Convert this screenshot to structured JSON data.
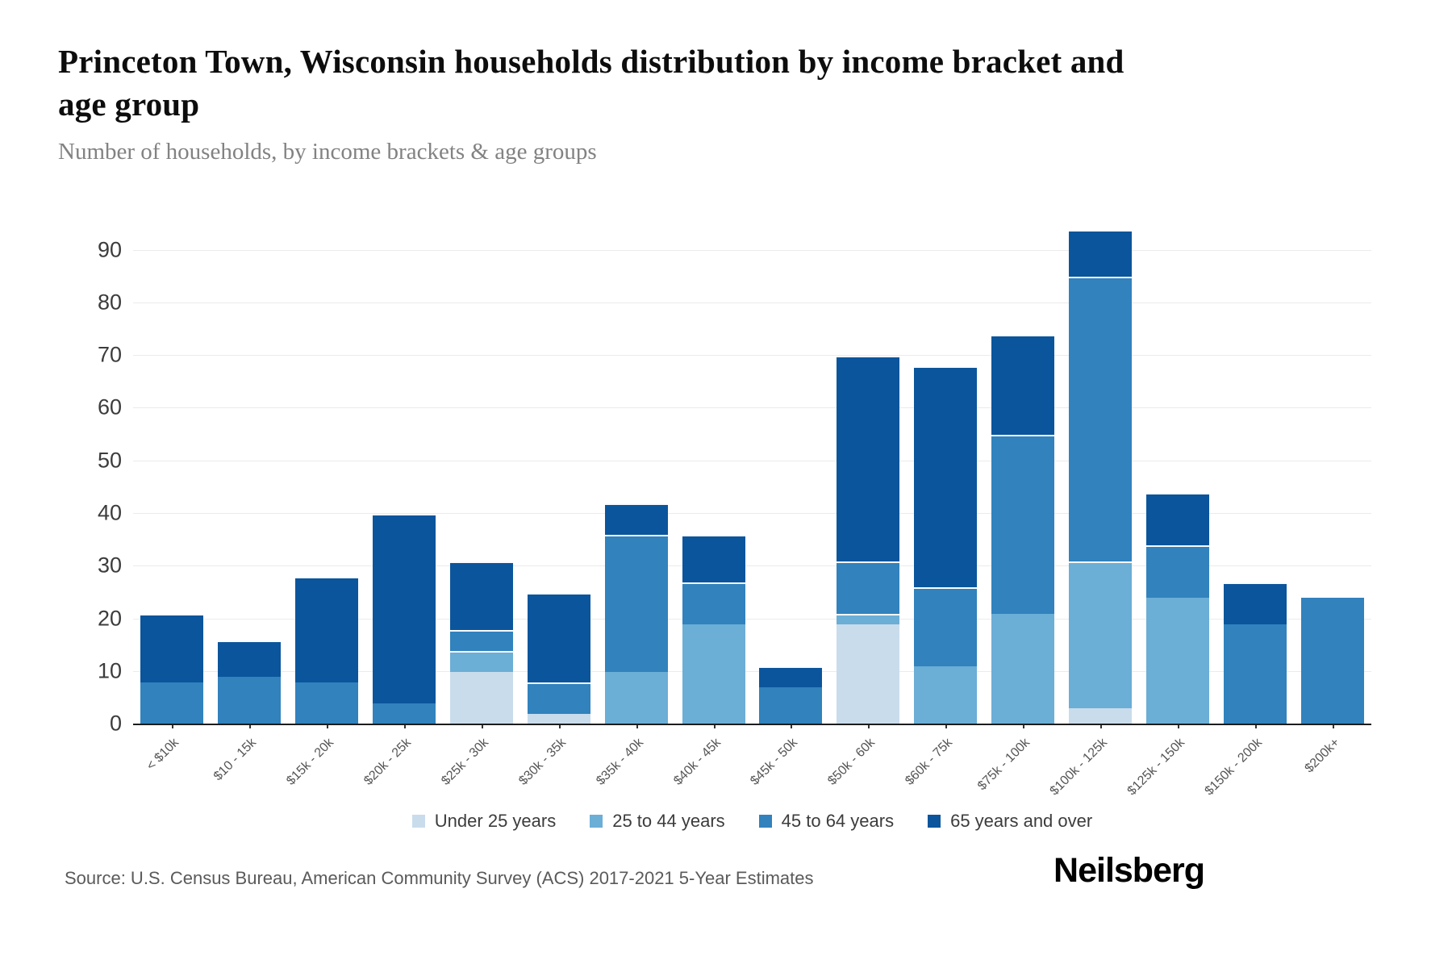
{
  "header": {
    "title": "Princeton Town, Wisconsin households distribution by income bracket and age group",
    "subtitle": "Number of households, by income brackets & age groups"
  },
  "chart_data": {
    "type": "bar",
    "stacked": true,
    "title": "Princeton Town, Wisconsin households distribution by income bracket and age group",
    "xlabel": "",
    "ylabel": "Number of households",
    "ylim": [
      0,
      97
    ],
    "yticks": [
      0,
      10,
      20,
      30,
      40,
      50,
      60,
      70,
      80,
      90
    ],
    "grid": true,
    "legend_position": "bottom",
    "categories": [
      "< $10k",
      "$10 - 15k",
      "$15k - 20k",
      "$20k - 25k",
      "$25k - 30k",
      "$30k - 35k",
      "$35k - 40k",
      "$40k - 45k",
      "$45k - 50k",
      "$50k - 60k",
      "$60k - 75k",
      "$75k - 100k",
      "$100k - 125k",
      "$125k - 150k",
      "$150k - 200k",
      "$200k+"
    ],
    "series": [
      {
        "name": "Under 25 years",
        "color": "#c9dcec",
        "values": [
          0,
          0,
          0,
          0,
          10,
          2,
          0,
          0,
          0,
          19,
          0,
          0,
          3,
          0,
          0,
          0
        ]
      },
      {
        "name": "25 to 44 years",
        "color": "#6baed6",
        "values": [
          0,
          0,
          0,
          0,
          4,
          0,
          10,
          19,
          0,
          2,
          11,
          21,
          28,
          24,
          0,
          0
        ]
      },
      {
        "name": "45 to 64 years",
        "color": "#3182bd",
        "values": [
          8,
          9,
          8,
          4,
          4,
          6,
          26,
          8,
          7,
          10,
          15,
          34,
          54,
          10,
          19,
          24
        ]
      },
      {
        "name": "65 years and over",
        "color": "#0b559c",
        "values": [
          13,
          7,
          20,
          36,
          13,
          17,
          6,
          9,
          4,
          39,
          42,
          19,
          9,
          10,
          8,
          0
        ]
      }
    ],
    "bar_totals": [
      21,
      16,
      28,
      40,
      31,
      25,
      42,
      36,
      11,
      70,
      68,
      74,
      94,
      44,
      27,
      24
    ]
  },
  "footer": {
    "source": "Source: U.S. Census Bureau, American Community Survey (ACS) 2017-2021 5-Year Estimates",
    "brand": "Neilsberg"
  }
}
